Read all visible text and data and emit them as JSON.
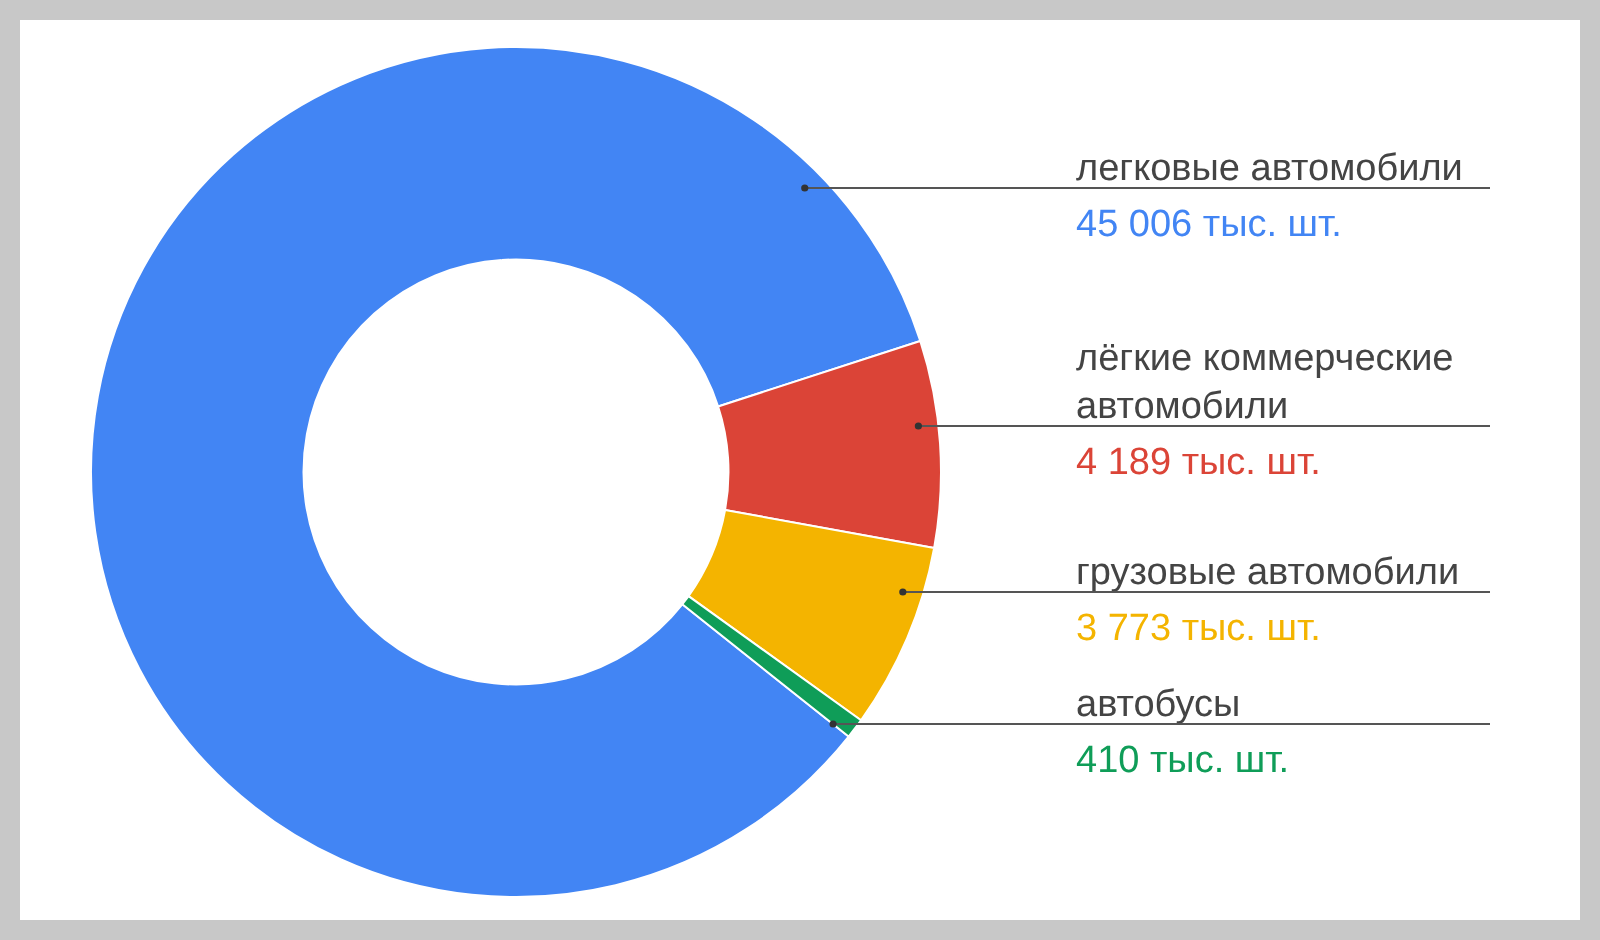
{
  "chart_data": {
    "type": "donut",
    "categories": [
      "легковые автомобили",
      "лёгкие коммерческие автомобили",
      "грузовые автомобили",
      "автобусы"
    ],
    "values": [
      45006,
      4189,
      3773,
      410
    ],
    "colors": [
      "#4285f4",
      "#db4437",
      "#f4b400",
      "#0f9d58"
    ],
    "value_labels": [
      "45 006 тыс. шт.",
      "4 189 тыс. шт.",
      "3 773 тыс. шт.",
      "410 тыс. шт."
    ],
    "legend": false
  }
}
